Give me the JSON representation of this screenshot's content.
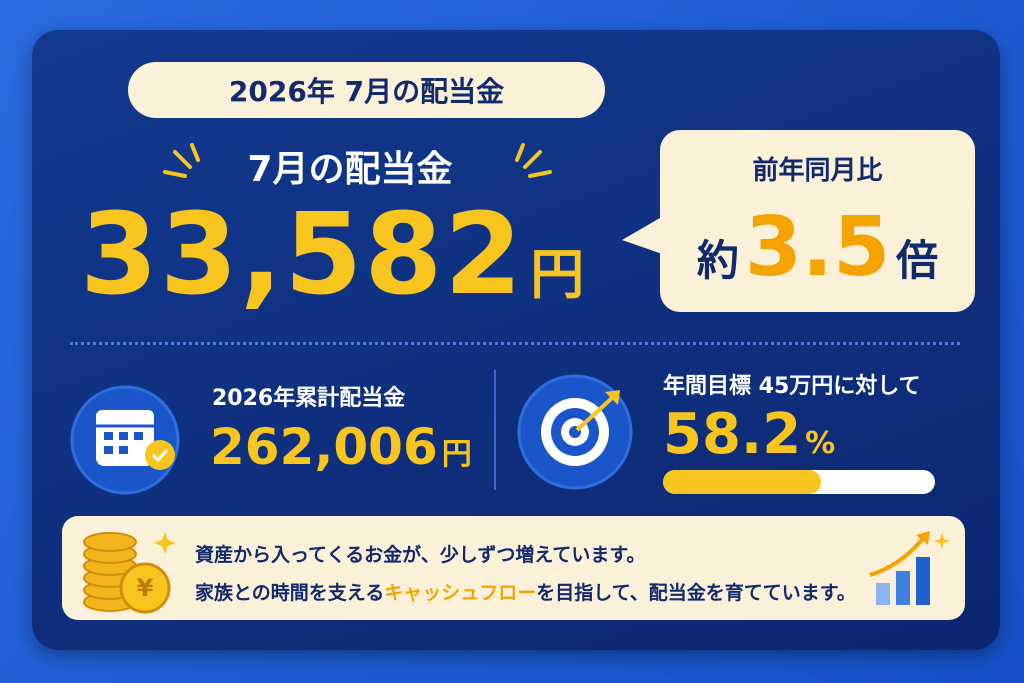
{
  "header": {
    "title": "2026年 7月の配当金"
  },
  "main": {
    "label": "7月の配当金",
    "amount": "33,582",
    "unit": "円"
  },
  "comparison": {
    "label": "前年同月比",
    "prefix": "約",
    "value": "3.5",
    "suffix": "倍"
  },
  "cumulative": {
    "label": "2026年累計配当金",
    "amount": "262,006",
    "unit": "円"
  },
  "goal": {
    "label": "年間目標 45万円に対して",
    "value": 58.2,
    "unit": "%"
  },
  "message": {
    "line1": "資産から入ってくるお金が、少しずつ増えています。",
    "line2_before": "家族との時間を支える",
    "line2_highlight": "キャッシュフロー",
    "line2_after": "を目指して、配当金を育てています。"
  }
}
